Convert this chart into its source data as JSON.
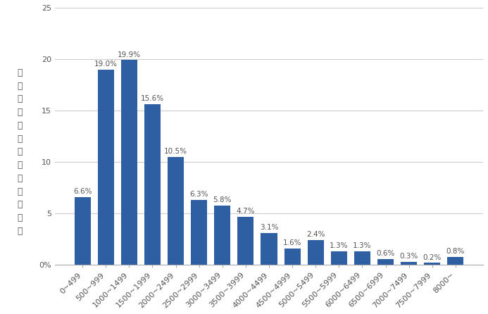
{
  "categories": [
    "0~499",
    "500~999",
    "1000~1499",
    "1500~1999",
    "2000~2499",
    "2500~2999",
    "3000~3499",
    "3500~3999",
    "4000~4499",
    "4500~4999",
    "5000~5499",
    "5500~5999",
    "6000~6499",
    "6500~6999",
    "7000~7499",
    "7500~7999",
    "8000~"
  ],
  "values": [
    6.6,
    19.0,
    19.9,
    15.6,
    10.5,
    6.3,
    5.8,
    4.7,
    3.1,
    1.6,
    2.4,
    1.3,
    1.3,
    0.6,
    0.3,
    0.2,
    0.8
  ],
  "labels": [
    "6.6%",
    "19.0%",
    "19.9%",
    "15.6%",
    "10.5%",
    "6.3%",
    "5.8%",
    "4.7%",
    "3.1%",
    "1.6%",
    "2.4%",
    "1.3%",
    "1.3%",
    "0.6%",
    "0.3%",
    "0.2%",
    "0.8%"
  ],
  "bar_color": "#2e5fa3",
  "ylabel_chars": [
    "調査企業に占める割合（％）"
  ],
  "ylim": [
    0,
    25
  ],
  "yticks": [
    0,
    5,
    10,
    15,
    20,
    25
  ],
  "yticklabels": [
    "0%",
    "5",
    "10",
    "15",
    "20",
    "25"
  ],
  "background_color": "#ffffff",
  "bar_edge_color": "none",
  "label_fontsize": 7.5,
  "ylabel_fontsize": 9,
  "tick_fontsize": 8,
  "text_color": "#555555"
}
